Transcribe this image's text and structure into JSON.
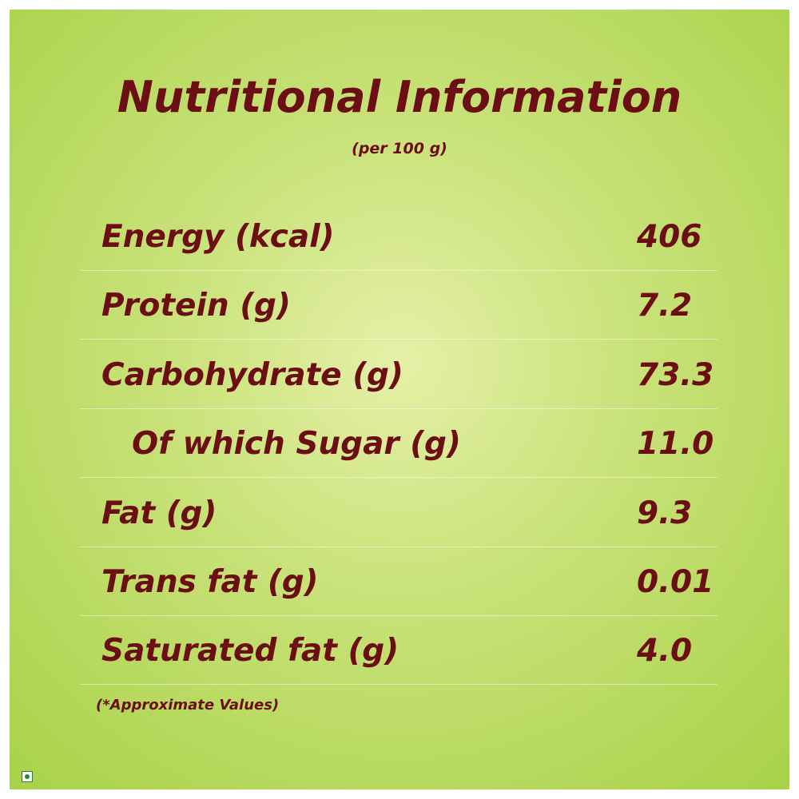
{
  "header": {
    "title": "Nutritional Information",
    "subtitle": "(per 100 g)"
  },
  "table": {
    "rows": [
      {
        "label": "Energy (kcal)",
        "value": "406",
        "indent": false
      },
      {
        "label": "Protein (g)",
        "value": "7.2",
        "indent": false
      },
      {
        "label": "Carbohydrate (g)",
        "value": "73.3",
        "indent": false
      },
      {
        "label": "Of which Sugar (g)",
        "value": "11.0",
        "indent": true
      },
      {
        "label": "Fat (g)",
        "value": "9.3",
        "indent": false
      },
      {
        "label": "Trans fat (g)",
        "value": "0.01",
        "indent": false
      },
      {
        "label": "Saturated fat (g)",
        "value": "4.0",
        "indent": false
      }
    ]
  },
  "footnote": "(*Approximate Values)"
}
